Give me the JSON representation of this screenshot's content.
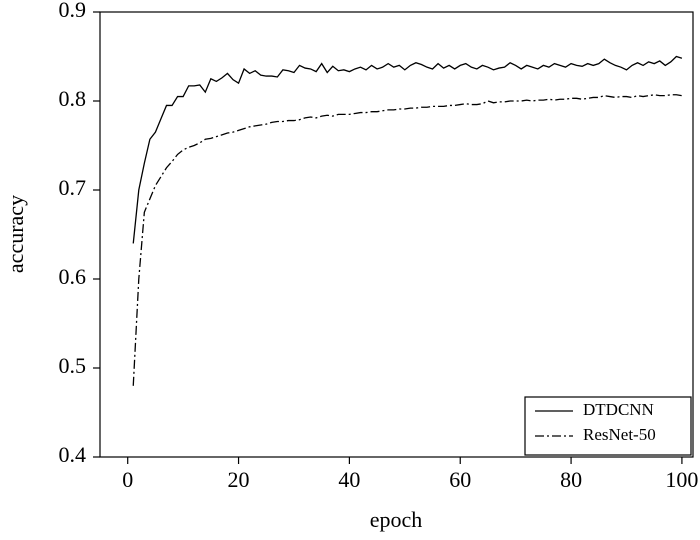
{
  "chart_data": {
    "type": "line",
    "xlabel": "epoch",
    "ylabel": "accuracy",
    "x": [
      1,
      2,
      3,
      4,
      5,
      6,
      7,
      8,
      9,
      10,
      11,
      12,
      13,
      14,
      15,
      16,
      17,
      18,
      19,
      20,
      21,
      22,
      23,
      24,
      25,
      26,
      27,
      28,
      29,
      30,
      31,
      32,
      33,
      34,
      35,
      36,
      37,
      38,
      39,
      40,
      41,
      42,
      43,
      44,
      45,
      46,
      47,
      48,
      49,
      50,
      51,
      52,
      53,
      54,
      55,
      56,
      57,
      58,
      59,
      60,
      61,
      62,
      63,
      64,
      65,
      66,
      67,
      68,
      69,
      70,
      71,
      72,
      73,
      74,
      75,
      76,
      77,
      78,
      79,
      80,
      81,
      82,
      83,
      84,
      85,
      86,
      87,
      88,
      89,
      90,
      91,
      92,
      93,
      94,
      95,
      96,
      97,
      98,
      99,
      100
    ],
    "series": [
      {
        "name": "DTDCNN",
        "color": "#000000",
        "linestyle": "solid",
        "values": [
          0.64,
          0.7,
          0.73,
          0.757,
          0.765,
          0.78,
          0.795,
          0.795,
          0.805,
          0.805,
          0.817,
          0.817,
          0.818,
          0.81,
          0.825,
          0.822,
          0.826,
          0.831,
          0.824,
          0.82,
          0.836,
          0.831,
          0.834,
          0.829,
          0.828,
          0.828,
          0.827,
          0.835,
          0.834,
          0.832,
          0.84,
          0.837,
          0.836,
          0.833,
          0.842,
          0.832,
          0.839,
          0.834,
          0.835,
          0.833,
          0.836,
          0.838,
          0.835,
          0.84,
          0.836,
          0.838,
          0.842,
          0.838,
          0.84,
          0.835,
          0.84,
          0.843,
          0.841,
          0.838,
          0.836,
          0.842,
          0.837,
          0.84,
          0.836,
          0.84,
          0.842,
          0.838,
          0.836,
          0.84,
          0.838,
          0.835,
          0.837,
          0.838,
          0.843,
          0.84,
          0.836,
          0.84,
          0.838,
          0.836,
          0.84,
          0.838,
          0.842,
          0.84,
          0.838,
          0.842,
          0.84,
          0.839,
          0.842,
          0.84,
          0.842,
          0.847,
          0.843,
          0.84,
          0.838,
          0.835,
          0.84,
          0.843,
          0.84,
          0.844,
          0.842,
          0.845,
          0.84,
          0.844,
          0.85,
          0.848
        ]
      },
      {
        "name": "ResNet-50",
        "color": "#000000",
        "linestyle": "dashdot",
        "values": [
          0.48,
          0.6,
          0.675,
          0.69,
          0.705,
          0.715,
          0.725,
          0.732,
          0.74,
          0.745,
          0.748,
          0.75,
          0.753,
          0.757,
          0.758,
          0.76,
          0.762,
          0.764,
          0.765,
          0.767,
          0.769,
          0.771,
          0.772,
          0.773,
          0.774,
          0.776,
          0.777,
          0.777,
          0.778,
          0.778,
          0.779,
          0.781,
          0.782,
          0.781,
          0.783,
          0.784,
          0.783,
          0.785,
          0.785,
          0.785,
          0.786,
          0.787,
          0.787,
          0.788,
          0.788,
          0.789,
          0.79,
          0.79,
          0.791,
          0.791,
          0.792,
          0.792,
          0.793,
          0.793,
          0.794,
          0.794,
          0.794,
          0.795,
          0.795,
          0.796,
          0.797,
          0.796,
          0.796,
          0.797,
          0.8,
          0.798,
          0.799,
          0.799,
          0.8,
          0.8,
          0.8,
          0.801,
          0.8,
          0.801,
          0.801,
          0.802,
          0.801,
          0.802,
          0.802,
          0.803,
          0.803,
          0.802,
          0.803,
          0.804,
          0.804,
          0.806,
          0.805,
          0.804,
          0.805,
          0.805,
          0.804,
          0.806,
          0.805,
          0.806,
          0.807,
          0.806,
          0.806,
          0.807,
          0.807,
          0.806
        ]
      }
    ],
    "xlim": [
      -5,
      102
    ],
    "xticks": [
      0,
      20,
      40,
      60,
      80,
      100
    ],
    "ylim": [
      0.4,
      0.9
    ],
    "yticks": [
      0.4,
      0.5,
      0.6,
      0.7,
      0.8,
      0.9
    ],
    "grid": false,
    "legend": "lower right"
  }
}
